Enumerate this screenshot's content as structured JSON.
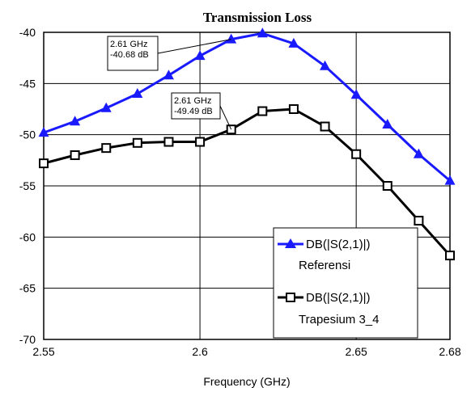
{
  "chart_data": {
    "type": "line",
    "title": "Transmission Loss",
    "xlabel": "Frequency (GHz)",
    "ylabel": "",
    "xlim": [
      2.55,
      2.68
    ],
    "ylim": [
      -70,
      -40
    ],
    "xticks": [
      2.55,
      2.6,
      2.65,
      2.68
    ],
    "xtick_labels": [
      "2.55",
      "2.6",
      "2.65",
      "2.68"
    ],
    "yticks": [
      -40,
      -45,
      -50,
      -55,
      -60,
      -65,
      -70
    ],
    "ytick_labels": [
      "-40",
      "-45",
      "-50",
      "-55",
      "-60",
      "-65",
      "-70"
    ],
    "grid": true,
    "legend_position": "bottom-right",
    "series": [
      {
        "name_line1": "DB(|S(2,1)|)",
        "name_line2": "Referensi",
        "color": "#1a1aff",
        "marker": "triangle",
        "x": [
          2.55,
          2.56,
          2.57,
          2.58,
          2.59,
          2.6,
          2.61,
          2.62,
          2.63,
          2.64,
          2.65,
          2.66,
          2.67,
          2.68
        ],
        "y": [
          -49.8,
          -48.7,
          -47.4,
          -46.0,
          -44.2,
          -42.3,
          -40.68,
          -40.1,
          -41.1,
          -43.3,
          -46.1,
          -49.0,
          -51.9,
          -54.5
        ]
      },
      {
        "name_line1": "DB(|S(2,1)|)",
        "name_line2": "Trapesium 3_4",
        "color": "#000000",
        "marker": "square",
        "x": [
          2.55,
          2.56,
          2.57,
          2.58,
          2.59,
          2.6,
          2.61,
          2.62,
          2.63,
          2.64,
          2.65,
          2.66,
          2.67,
          2.68
        ],
        "y": [
          -52.8,
          -52.0,
          -51.3,
          -50.8,
          -50.7,
          -50.7,
          -49.49,
          -47.7,
          -47.5,
          -49.2,
          -51.9,
          -55.0,
          -58.4,
          -61.8
        ]
      }
    ],
    "annotations": [
      {
        "series": 0,
        "line1": "2.61 GHz",
        "line2": "-40.68 dB",
        "x": 2.61,
        "y": -40.68
      },
      {
        "series": 1,
        "line1": "2.61 GHz",
        "line2": "-49.49 dB",
        "x": 2.61,
        "y": -49.49
      }
    ]
  }
}
